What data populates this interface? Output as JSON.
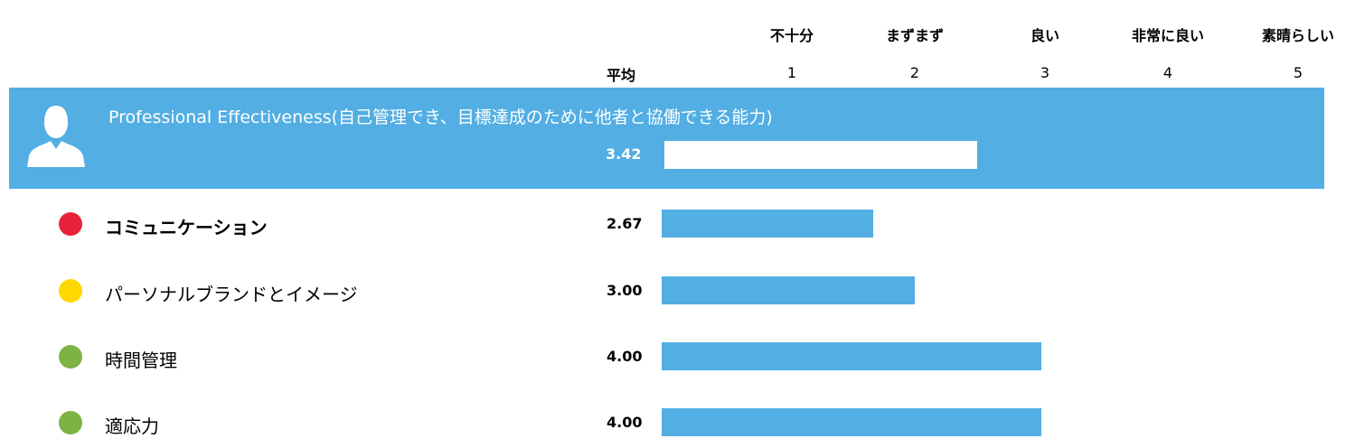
{
  "chart_data": {
    "type": "bar",
    "orientation": "horizontal",
    "xlim": [
      0,
      5
    ],
    "scale_labels": [
      "不十分",
      "まずまず",
      "良い",
      "非常に良い",
      "素晴らしい"
    ],
    "scale_ticks": [
      "1",
      "2",
      "3",
      "4",
      "5"
    ],
    "avg_header": "平均",
    "section": {
      "title": "Professional Effectiveness(自己管理でき、目標達成のために他者と協働できる能力)",
      "value": 3.42,
      "value_label": "3.42"
    },
    "categories": [
      "コミュニケーション",
      "パーソナルブランドとイメージ",
      "時間管理",
      "適応力"
    ],
    "values": [
      2.67,
      3.0,
      4.0,
      4.0
    ],
    "value_labels": [
      "2.67",
      "3.00",
      "4.00",
      "4.00"
    ],
    "status_colors": [
      "#e8223b",
      "#ffd800",
      "#7cb342",
      "#7cb342"
    ]
  },
  "colors": {
    "bar": "#52aee3",
    "section_band": "#52aee3",
    "section_bar": "#ffffff"
  }
}
